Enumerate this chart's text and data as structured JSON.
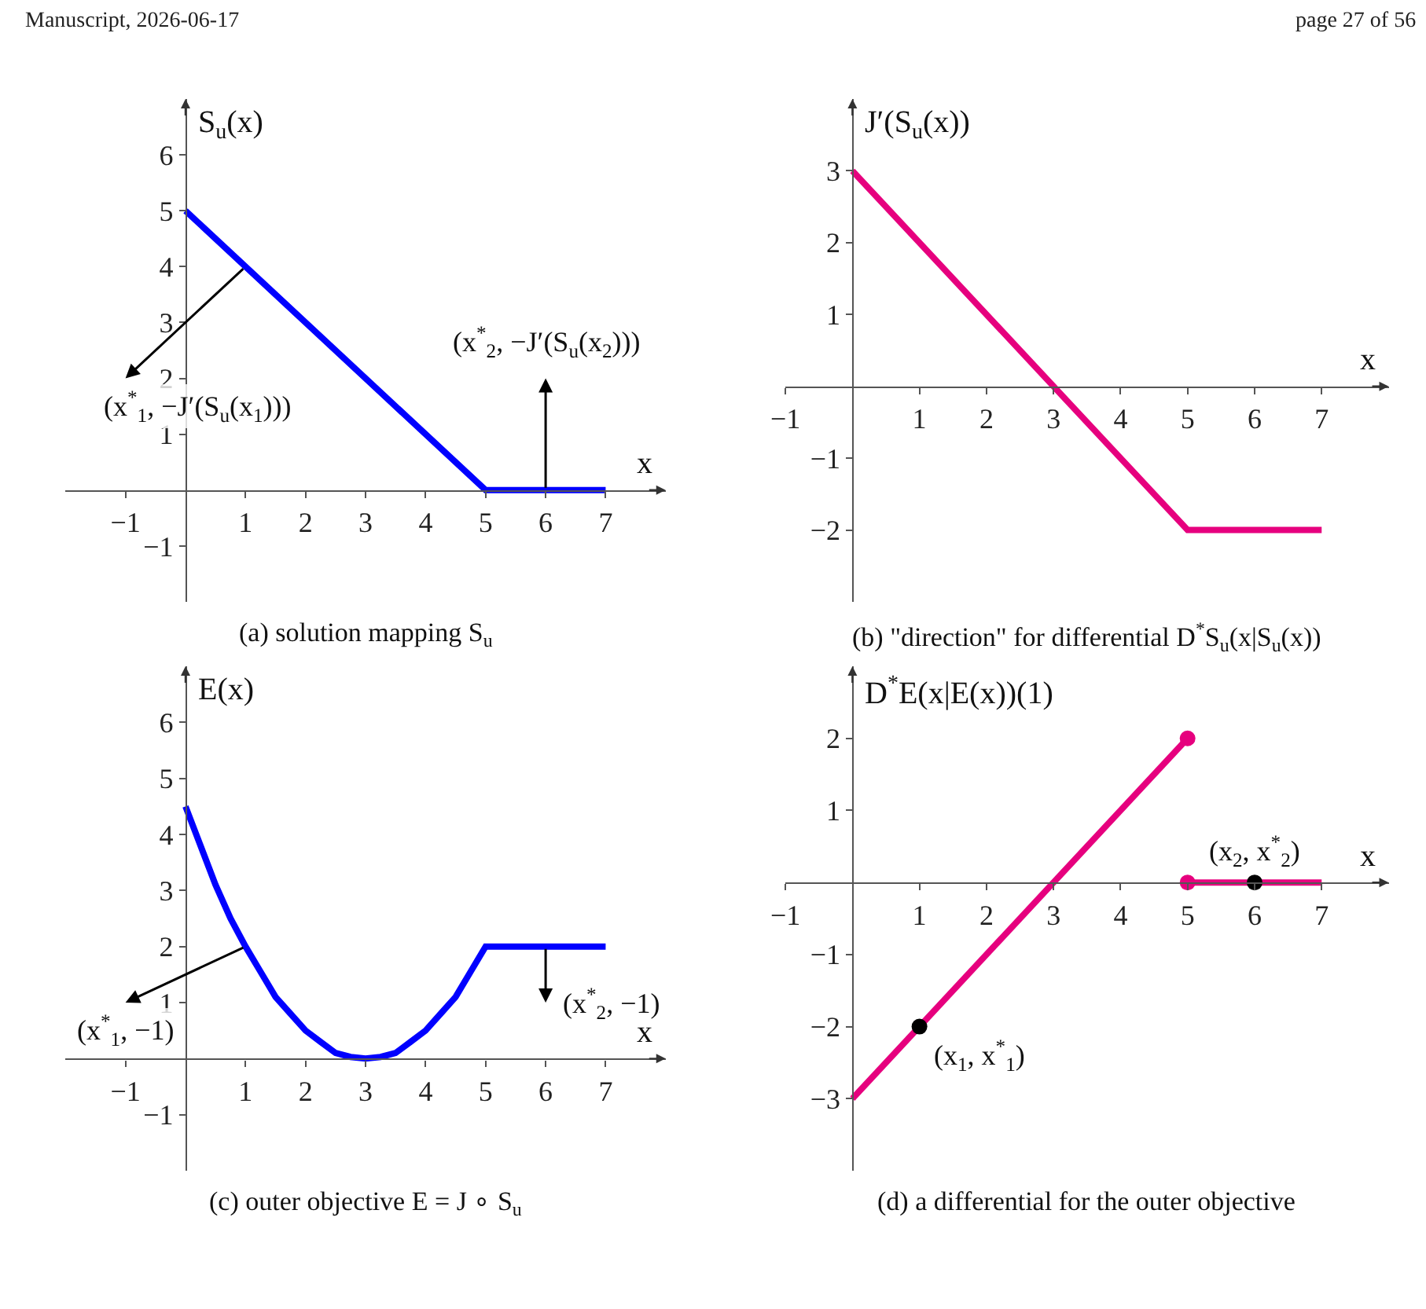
{
  "chart_data": [
    {
      "type": "line",
      "title": "(a) solution mapping S$_{u}$",
      "xlabel": "x",
      "ylabel": "S$_{u}$(x)",
      "xlim": [
        -2,
        8
      ],
      "ylim": [
        -2,
        7
      ],
      "xticks": [
        -1,
        1,
        2,
        3,
        4,
        5,
        6,
        7
      ],
      "yticks": [
        -1,
        1,
        2,
        3,
        4,
        5,
        6
      ],
      "marker": "none",
      "series": [
        {
          "color": "#0000ff",
          "x": [
            0,
            5,
            7
          ],
          "values": [
            5,
            0,
            0
          ]
        }
      ],
      "annotations": [
        "Manuscript, 2026-06-17",
        "page 27 of 56",
        "(x$^{*}$$_{1}$, −J′(S$_{u}$(x$_{1}$)))",
        "(x$^{*}$$_{2}$, −J′(S$_{u}$(x$_{2}$)))"
      ]
    },
    {
      "type": "line",
      "title": "(b) \"direction\" for differential D$^{*}$S$_{u}$(x|S$_{u}$(x))",
      "xlabel": "x",
      "ylabel": "J′(S$_{u}$(x))",
      "xlim": [
        -1,
        8
      ],
      "ylim": [
        -3,
        4
      ],
      "xticks": [
        -1,
        1,
        2,
        3,
        4,
        5,
        6,
        7
      ],
      "yticks": [
        -2,
        -1,
        1,
        2,
        3
      ],
      "marker": "none",
      "series": [
        {
          "color": "#e6007e",
          "x": [
            0,
            5,
            7
          ],
          "values": [
            3,
            -2,
            -2
          ]
        }
      ]
    },
    {
      "type": "line",
      "title": "(c) outer objective E = J ∘ S$_{u}$",
      "xlabel": "x",
      "ylabel": "E(x)",
      "xlim": [
        -2,
        8
      ],
      "ylim": [
        -2,
        7
      ],
      "xticks": [
        -1,
        1,
        2,
        3,
        4,
        5,
        6,
        7
      ],
      "yticks": [
        -1,
        1,
        2,
        3,
        4,
        5,
        6
      ],
      "marker": "none",
      "series": [
        {
          "color": "#0000ff",
          "x": [
            0,
            0.25,
            0.5,
            0.75,
            1,
            1.25,
            1.5,
            1.75,
            2,
            2.25,
            2.5,
            2.75,
            3,
            3.25,
            3.5,
            3.75,
            4,
            4.25,
            4.5,
            4.75,
            5,
            7
          ],
          "values": [
            4.5,
            3.8,
            3.1,
            2.5,
            2,
            1.55,
            1.1,
            0.8,
            0.5,
            0.3,
            0.1,
            0.03,
            0,
            0.03,
            0.1,
            0.3,
            0.5,
            0.8,
            1.1,
            1.55,
            2,
            2
          ]
        }
      ],
      "annotations": [
        "(x$^{*}$$_{1}$, −1)",
        "(x$^{*}$$_{2}$, −1)"
      ]
    },
    {
      "type": "line",
      "title": "(d) a differential for the outer objective",
      "xlabel": "x",
      "ylabel": "D$^{*}$E(x|E(x))(1)",
      "xlim": [
        -1,
        8
      ],
      "ylim": [
        -4,
        3
      ],
      "xticks": [
        -1,
        1,
        2,
        3,
        4,
        5,
        6,
        7
      ],
      "yticks": [
        -3,
        -2,
        -1,
        1,
        2
      ],
      "marker": "none",
      "series": [
        {
          "color": "#e6007e",
          "x": [
            0,
            5
          ],
          "values": [
            -3,
            2
          ]
        },
        {
          "color": "#e6007e",
          "x": [
            5,
            7
          ],
          "values": [
            0,
            0
          ]
        },
        {
          "type": "scatter",
          "marker": "circle",
          "color": "#e6007e",
          "x": [
            5,
            5
          ],
          "values": [
            2,
            0
          ]
        },
        {
          "type": "scatter",
          "marker": "circle",
          "color": "#000000",
          "x": [
            1,
            6
          ],
          "values": [
            -2,
            0
          ]
        }
      ],
      "annotations": [
        "(x$_{2}$, x$^{*}$$_{2}$)",
        "(x$_{1}$, x$^{*}$$_{1}$)"
      ]
    }
  ]
}
